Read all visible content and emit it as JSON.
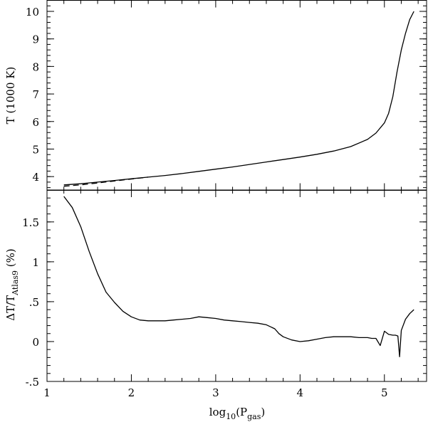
{
  "chart_data": [
    {
      "type": "line",
      "ylabel": "T (1000 K)",
      "xlim": [
        1,
        5.5
      ],
      "ylim": [
        3.5,
        10.4
      ],
      "yticks": [
        4,
        5,
        6,
        7,
        8,
        9,
        10
      ],
      "series": [
        {
          "style": "solid",
          "x": [
            1.2,
            1.4,
            1.6,
            1.8,
            2.0,
            2.2,
            2.4,
            2.6,
            2.8,
            3.0,
            3.2,
            3.4,
            3.6,
            3.8,
            4.0,
            4.2,
            4.4,
            4.6,
            4.8,
            4.9,
            5.0,
            5.05,
            5.1,
            5.15,
            5.2,
            5.25,
            5.3,
            5.35
          ],
          "y": [
            3.7,
            3.74,
            3.8,
            3.86,
            3.92,
            3.98,
            4.04,
            4.11,
            4.19,
            4.27,
            4.35,
            4.44,
            4.53,
            4.62,
            4.71,
            4.81,
            4.93,
            5.09,
            5.35,
            5.58,
            5.95,
            6.3,
            6.9,
            7.8,
            8.6,
            9.2,
            9.7,
            10.0
          ]
        },
        {
          "style": "dashed",
          "x": [
            1.2,
            1.4,
            1.6,
            1.8,
            2.0,
            2.2
          ],
          "y": [
            3.65,
            3.7,
            3.77,
            3.84,
            3.91,
            3.98
          ]
        }
      ]
    },
    {
      "type": "line",
      "xlabel": "log10(Pgas)",
      "ylabel": "ΔT/TAtlas9 (%)",
      "xlim": [
        1,
        5.5
      ],
      "ylim": [
        -0.5,
        1.9
      ],
      "xticks": [
        1,
        2,
        3,
        4,
        5
      ],
      "yticks": [
        -0.5,
        0,
        0.5,
        1,
        1.5
      ],
      "series": [
        {
          "style": "solid",
          "x": [
            1.2,
            1.3,
            1.4,
            1.5,
            1.6,
            1.7,
            1.8,
            1.9,
            2.0,
            2.1,
            2.2,
            2.3,
            2.4,
            2.5,
            2.6,
            2.7,
            2.8,
            2.9,
            3.0,
            3.1,
            3.2,
            3.3,
            3.4,
            3.5,
            3.6,
            3.7,
            3.75,
            3.8,
            3.9,
            4.0,
            4.1,
            4.2,
            4.3,
            4.4,
            4.5,
            4.6,
            4.7,
            4.8,
            4.85,
            4.9,
            4.95,
            5.0,
            5.05,
            5.1,
            5.13,
            5.16,
            5.18,
            5.2,
            5.25,
            5.3,
            5.35
          ],
          "y": [
            1.82,
            1.68,
            1.44,
            1.13,
            0.85,
            0.62,
            0.49,
            0.38,
            0.31,
            0.27,
            0.26,
            0.26,
            0.26,
            0.27,
            0.28,
            0.29,
            0.31,
            0.3,
            0.29,
            0.27,
            0.26,
            0.25,
            0.24,
            0.23,
            0.21,
            0.16,
            0.1,
            0.06,
            0.02,
            0.0,
            0.01,
            0.03,
            0.05,
            0.06,
            0.06,
            0.06,
            0.05,
            0.05,
            0.04,
            0.04,
            -0.05,
            0.13,
            0.09,
            0.08,
            0.08,
            0.07,
            -0.19,
            0.14,
            0.28,
            0.35,
            0.4
          ]
        }
      ]
    }
  ]
}
